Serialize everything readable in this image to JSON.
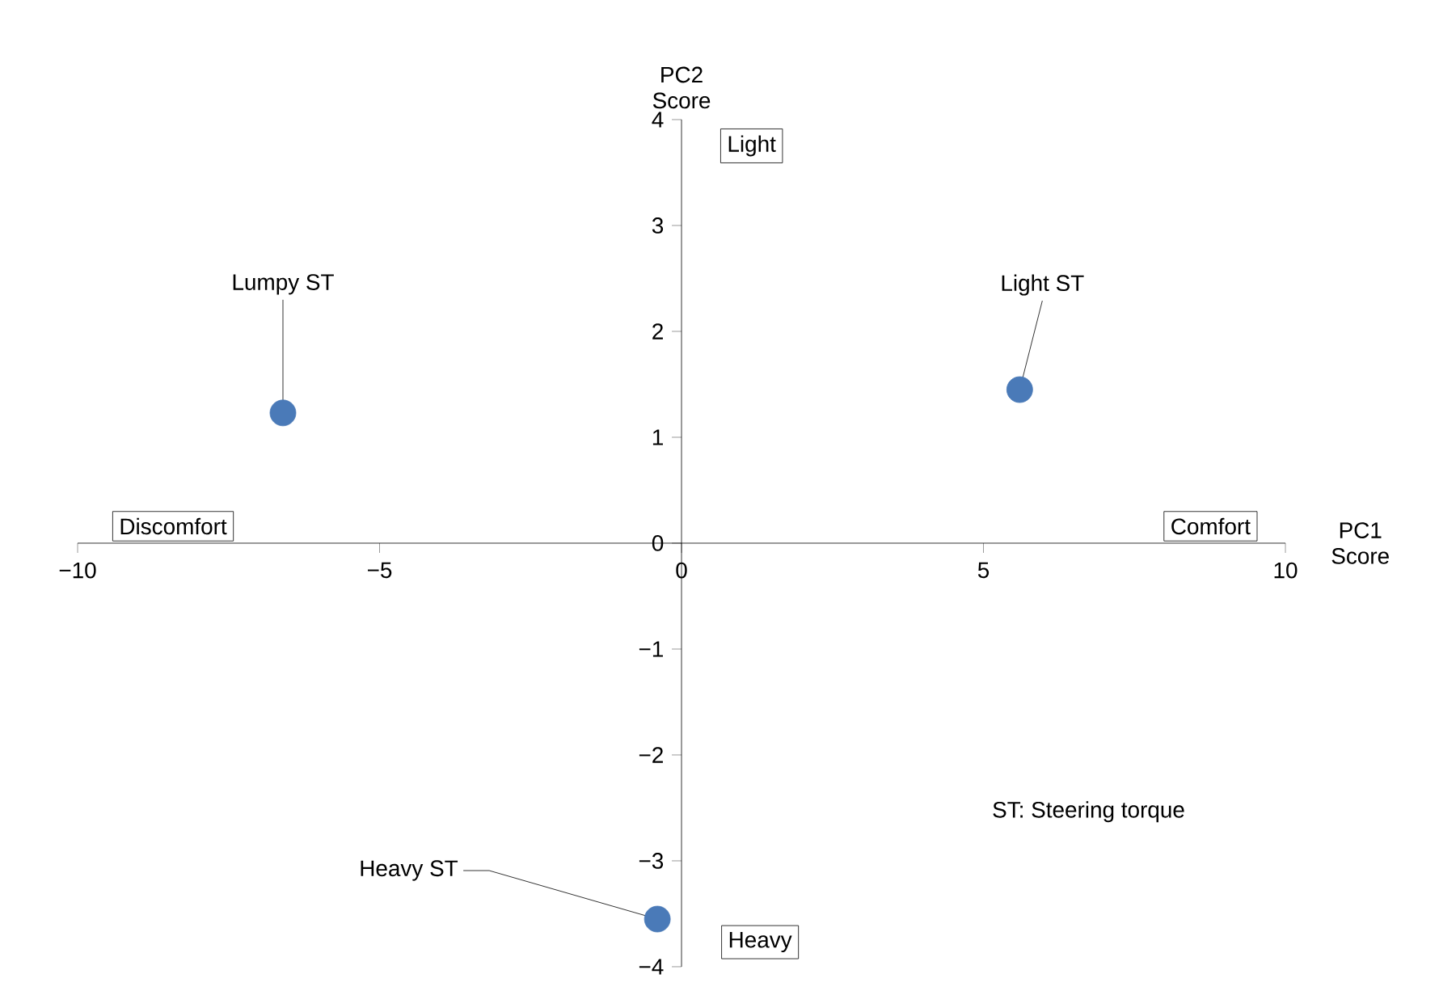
{
  "chart_data": {
    "type": "scatter",
    "xlabel": "PC1 Score",
    "ylabel": "PC2 Score",
    "xlim": [
      -10,
      10
    ],
    "ylim": [
      -4,
      4
    ],
    "xticks": [
      {
        "value": -10,
        "label": "−10"
      },
      {
        "value": -5,
        "label": "−5"
      },
      0,
      5,
      10
    ],
    "yticks": [
      {
        "value": -4,
        "label": "−4"
      },
      {
        "value": -3,
        "label": "−3"
      },
      {
        "value": -2,
        "label": "−2"
      },
      {
        "value": -1,
        "label": "−1"
      },
      0,
      1,
      2,
      3,
      4
    ],
    "grid": false,
    "series": [
      {
        "color": "#4a7ab8",
        "x": [
          -6.6,
          5.6,
          -0.4
        ],
        "values": [
          1.23,
          1.45,
          -3.55
        ]
      }
    ],
    "annotations": [
      {
        "text": "Lumpy ST",
        "x": -6.6,
        "y": 1.23
      },
      {
        "text": "Light ST",
        "x": 5.6,
        "y": 1.45
      },
      {
        "text": "Heavy ST",
        "x": -0.4,
        "y": -3.55
      },
      "Light",
      "Heavy",
      "Discomfort",
      "Comfort",
      "ST: Steering torque"
    ]
  }
}
